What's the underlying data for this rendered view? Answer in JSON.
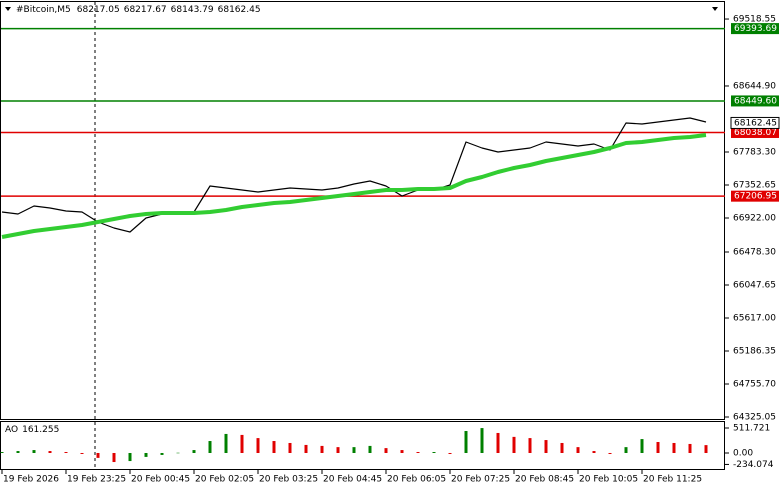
{
  "chart_data": [
    {
      "type": "line",
      "title": "#Bitcoin,M5",
      "ohlc": [
        68217.05,
        68217.67,
        68143.79,
        68162.45
      ],
      "x": [
        0,
        4,
        8,
        12,
        16,
        20,
        24,
        28,
        32,
        36,
        40,
        44,
        48,
        52,
        56,
        60,
        64,
        68,
        72,
        76,
        80,
        84,
        88,
        92,
        96,
        100,
        104,
        108,
        112,
        116,
        120,
        124,
        128,
        132,
        136,
        140,
        144,
        148,
        152,
        156,
        160,
        164,
        168,
        172,
        176
      ],
      "series": [
        {
          "color": "#000000",
          "width": 1.2,
          "values": [
            67000,
            66974,
            67079,
            67052,
            67013,
            67000,
            66870,
            66792,
            66739,
            66922,
            66974,
            67000,
            67000,
            67340,
            67314,
            67287,
            67261,
            67287,
            67314,
            67300,
            67287,
            67314,
            67366,
            67405,
            67340,
            67209,
            67287,
            67287,
            67353,
            67914,
            67836,
            67783,
            67809,
            67836,
            67914,
            67888,
            67862,
            67888,
            67809,
            68162,
            68149,
            68175,
            68201,
            68227,
            68175
          ]
        },
        {
          "color": "#32cd32",
          "width": 4,
          "values": [
            66674,
            66713,
            66752,
            66778,
            66805,
            66831,
            66870,
            66909,
            66948,
            66974,
            66987,
            66987,
            66987,
            67000,
            67026,
            67066,
            67092,
            67118,
            67131,
            67157,
            67183,
            67209,
            67235,
            67261,
            67287,
            67287,
            67300,
            67300,
            67314,
            67405,
            67457,
            67522,
            67574,
            67614,
            67666,
            67705,
            67744,
            67783,
            67836,
            67901,
            67914,
            67940,
            67966,
            67979,
            68005
          ]
        }
      ],
      "levels": [
        {
          "value": 69393.69,
          "color": "#008000"
        },
        {
          "value": 68449.6,
          "label": "68449.60",
          "color": "#008000"
        },
        {
          "value": 68038.07,
          "color": "#e00000"
        },
        {
          "value": 67206.95,
          "color": "#e00000"
        }
      ],
      "current_price": 68162.45,
      "xlim": [
        0,
        180
      ],
      "ylim": [
        64285.9,
        69740.8
      ],
      "yticks": [
        69518.55,
        {
          "value": 68644.9,
          "label": "68644.90"
        },
        {
          "value": 67783.3,
          "label": "67783.30"
        },
        67352.65,
        {
          "value": 66922,
          "label": "66922.00"
        },
        {
          "value": 66478.3,
          "label": "66478.30"
        },
        66047.65,
        {
          "value": 65617,
          "label": "65617.00"
        },
        65186.35,
        {
          "value": 64755.7,
          "label": "64755.70"
        },
        64325.05
      ],
      "xticks": [
        {
          "value": 0,
          "label": "19 Feb 2026"
        },
        {
          "value": 16,
          "label": "19 Feb 23:25"
        },
        {
          "value": 32,
          "label": "20 Feb 00:45"
        },
        {
          "value": 48,
          "label": "20 Feb 02:05"
        },
        {
          "value": 64,
          "label": "20 Feb 03:25"
        },
        {
          "value": 80,
          "label": "20 Feb 04:45"
        },
        {
          "value": 96,
          "label": "20 Feb 06:05"
        },
        {
          "value": 112,
          "label": "20 Feb 07:25"
        },
        {
          "value": 128,
          "label": "20 Feb 08:45"
        },
        {
          "value": 144,
          "label": "20 Feb 10:05"
        },
        {
          "value": 160,
          "label": "20 Feb 11:25"
        }
      ]
    },
    {
      "type": "bar",
      "title": "AO",
      "x": [
        0,
        4,
        8,
        12,
        16,
        20,
        24,
        28,
        32,
        36,
        40,
        44,
        48,
        52,
        56,
        60,
        64,
        68,
        72,
        76,
        80,
        84,
        88,
        92,
        96,
        100,
        104,
        108,
        112,
        116,
        120,
        124,
        128,
        132,
        136,
        140,
        144,
        148,
        152,
        156,
        160,
        164,
        168,
        172,
        176
      ],
      "values": [
        20,
        40,
        60,
        40,
        20,
        -20,
        -100,
        -185,
        -165,
        -80,
        -40,
        5,
        60,
        245,
        390,
        370,
        305,
        245,
        205,
        165,
        145,
        120,
        120,
        145,
        100,
        60,
        20,
        20,
        -20,
        450,
        510,
        410,
        330,
        305,
        265,
        205,
        120,
        40,
        -20,
        120,
        285,
        225,
        205,
        185,
        161.255
      ],
      "up_color": "#008000",
      "down_color": "#e00000",
      "ylim": [
        -348,
        614
      ],
      "yticks": [
        511.721,
        {
          "value": 0,
          "label": "0.00"
        },
        -234.074
      ]
    }
  ]
}
